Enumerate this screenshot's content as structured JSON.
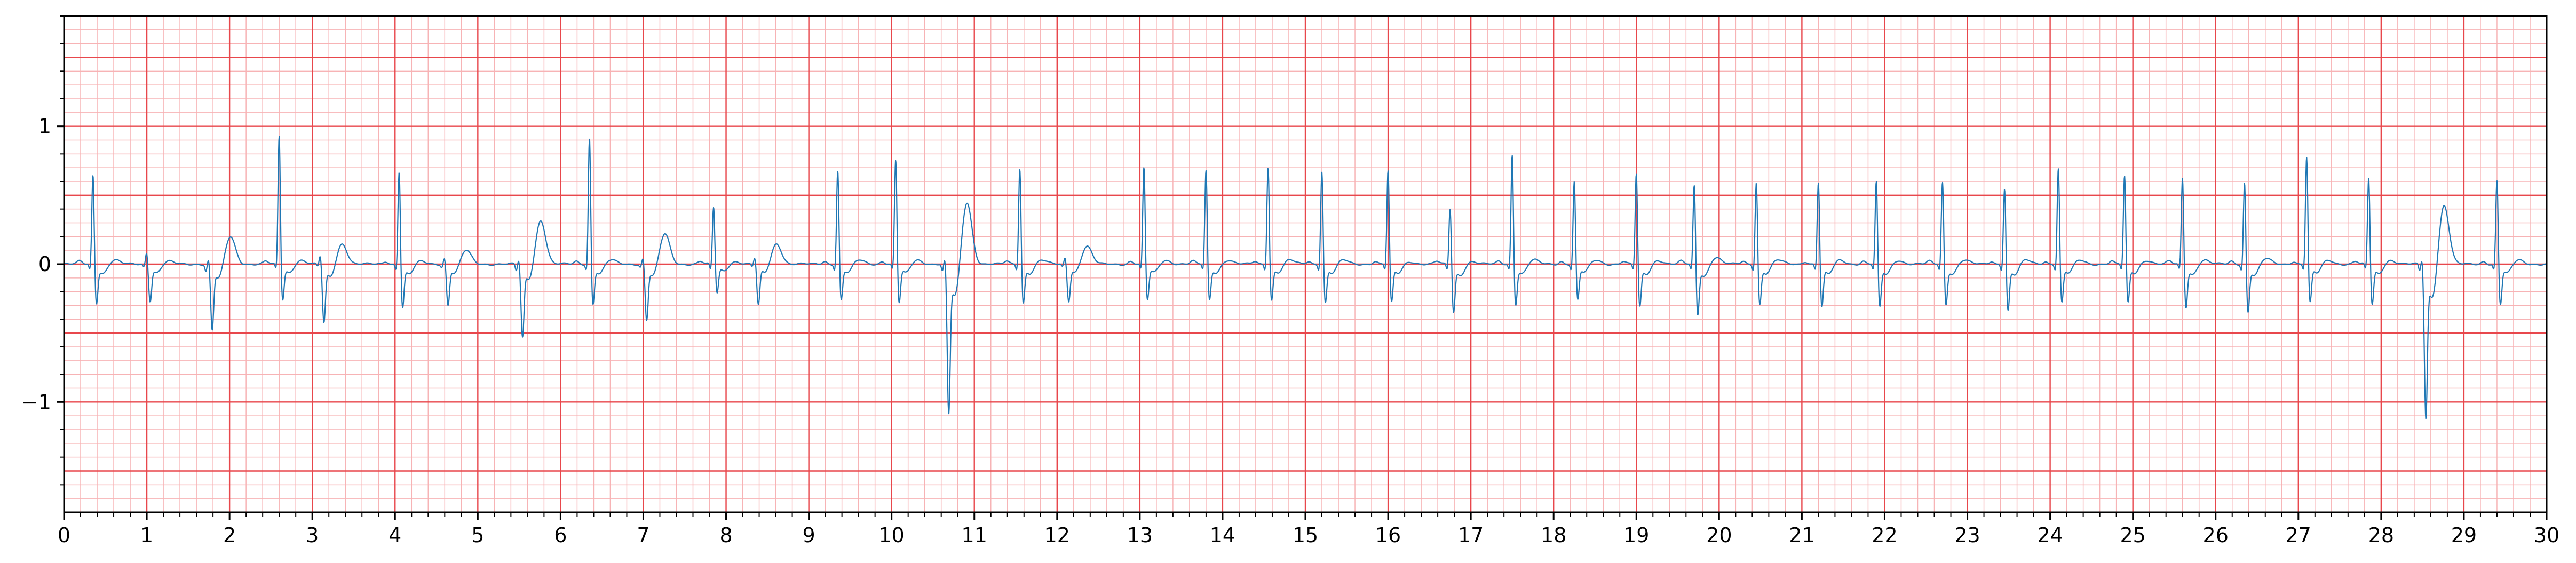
{
  "chart_data": {
    "type": "line",
    "title": "",
    "xlabel": "",
    "ylabel": "",
    "xlim": [
      0,
      30
    ],
    "ylim": [
      -1.8,
      1.8
    ],
    "x_ticks": [
      "0",
      "1",
      "2",
      "3",
      "4",
      "5",
      "6",
      "7",
      "8",
      "9",
      "10",
      "11",
      "12",
      "13",
      "14",
      "15",
      "16",
      "17",
      "18",
      "19",
      "20",
      "21",
      "22",
      "23",
      "24",
      "25",
      "26",
      "27",
      "28",
      "29",
      "30"
    ],
    "y_ticks": [
      {
        "value": 1,
        "label": "1"
      },
      {
        "value": 0,
        "label": "0"
      },
      {
        "value": -1,
        "label": "−1"
      }
    ],
    "grid": {
      "major_x": 1,
      "minor_x": 0.2,
      "major_y": 0.5,
      "minor_y": 0.1
    },
    "series": [
      {
        "beats": [
          {
            "t": 0.35,
            "r": 0.67,
            "q": -0.05,
            "s": -0.27,
            "p": 0.02,
            "tw": 0.03
          },
          {
            "t": 1.0,
            "r": 0.1,
            "q": -0.02,
            "s": -0.25,
            "p": 0.0,
            "tw": 0.02
          },
          {
            "t": 1.75,
            "r": 0.05,
            "q": -0.05,
            "s": -0.45,
            "p": 0.0,
            "tw": 0.2
          },
          {
            "t": 2.6,
            "r": 0.95,
            "q": -0.05,
            "s": -0.25,
            "p": 0.02,
            "tw": 0.03
          },
          {
            "t": 3.1,
            "r": 0.08,
            "q": -0.02,
            "s": -0.4,
            "p": 0.0,
            "tw": 0.15
          },
          {
            "t": 4.05,
            "r": 0.7,
            "q": -0.05,
            "s": -0.3,
            "p": 0.02,
            "tw": 0.02
          },
          {
            "t": 4.6,
            "r": 0.06,
            "q": -0.02,
            "s": -0.28,
            "p": 0.0,
            "tw": 0.1
          },
          {
            "t": 5.5,
            "r": 0.05,
            "q": -0.05,
            "s": -0.5,
            "p": 0.0,
            "tw": 0.32
          },
          {
            "t": 6.35,
            "r": 0.94,
            "q": -0.05,
            "s": -0.28,
            "p": 0.02,
            "tw": 0.03
          },
          {
            "t": 7.0,
            "r": 0.06,
            "q": -0.02,
            "s": -0.38,
            "p": 0.0,
            "tw": 0.22
          },
          {
            "t": 7.85,
            "r": 0.43,
            "q": -0.05,
            "s": -0.2,
            "p": 0.02,
            "tw": 0.02
          },
          {
            "t": 8.35,
            "r": 0.06,
            "q": -0.02,
            "s": -0.28,
            "p": 0.0,
            "tw": 0.15
          },
          {
            "t": 9.35,
            "r": 0.7,
            "q": -0.05,
            "s": -0.25,
            "p": 0.02,
            "tw": 0.03
          },
          {
            "t": 10.05,
            "r": 0.78,
            "q": -0.05,
            "s": -0.27,
            "p": 0.02,
            "tw": 0.03
          },
          {
            "t": 10.65,
            "r": 0.07,
            "q": -0.05,
            "s": -1.02,
            "p": 0.0,
            "tw": 0.45
          },
          {
            "t": 11.55,
            "r": 0.72,
            "q": -0.05,
            "s": -0.27,
            "p": 0.02,
            "tw": 0.03
          },
          {
            "t": 12.1,
            "r": 0.06,
            "q": -0.02,
            "s": -0.25,
            "p": 0.0,
            "tw": 0.13
          },
          {
            "t": 13.05,
            "r": 0.72,
            "q": -0.05,
            "s": -0.25,
            "p": 0.02,
            "tw": 0.03
          },
          {
            "t": 13.8,
            "r": 0.7,
            "q": -0.05,
            "s": -0.25,
            "p": 0.02,
            "tw": 0.03
          },
          {
            "t": 14.55,
            "r": 0.73,
            "q": -0.05,
            "s": -0.25,
            "p": 0.02,
            "tw": 0.03
          },
          {
            "t": 15.2,
            "r": 0.7,
            "q": -0.05,
            "s": -0.27,
            "p": 0.02,
            "tw": 0.03
          },
          {
            "t": 16.0,
            "r": 0.7,
            "q": -0.05,
            "s": -0.27,
            "p": 0.02,
            "tw": 0.02
          },
          {
            "t": 16.75,
            "r": 0.43,
            "q": -0.05,
            "s": -0.33,
            "p": 0.02,
            "tw": 0.02
          },
          {
            "t": 17.5,
            "r": 0.82,
            "q": -0.05,
            "s": -0.28,
            "p": 0.02,
            "tw": 0.03
          },
          {
            "t": 18.25,
            "r": 0.62,
            "q": -0.05,
            "s": -0.25,
            "p": 0.02,
            "tw": 0.03
          },
          {
            "t": 19.0,
            "r": 0.68,
            "q": -0.05,
            "s": -0.3,
            "p": 0.02,
            "tw": 0.03
          },
          {
            "t": 19.7,
            "r": 0.6,
            "q": -0.05,
            "s": -0.35,
            "p": 0.02,
            "tw": 0.05
          },
          {
            "t": 20.45,
            "r": 0.62,
            "q": -0.05,
            "s": -0.28,
            "p": 0.02,
            "tw": 0.03
          },
          {
            "t": 21.2,
            "r": 0.62,
            "q": -0.05,
            "s": -0.3,
            "p": 0.02,
            "tw": 0.03
          },
          {
            "t": 21.9,
            "r": 0.62,
            "q": -0.05,
            "s": -0.3,
            "p": 0.02,
            "tw": 0.03
          },
          {
            "t": 22.7,
            "r": 0.62,
            "q": -0.05,
            "s": -0.28,
            "p": 0.02,
            "tw": 0.03
          },
          {
            "t": 23.45,
            "r": 0.58,
            "q": -0.05,
            "s": -0.32,
            "p": 0.02,
            "tw": 0.03
          },
          {
            "t": 24.1,
            "r": 0.72,
            "q": -0.05,
            "s": -0.27,
            "p": 0.02,
            "tw": 0.03
          },
          {
            "t": 24.9,
            "r": 0.66,
            "q": -0.05,
            "s": -0.27,
            "p": 0.02,
            "tw": 0.03
          },
          {
            "t": 25.6,
            "r": 0.65,
            "q": -0.05,
            "s": -0.3,
            "p": 0.02,
            "tw": 0.03
          },
          {
            "t": 26.35,
            "r": 0.62,
            "q": -0.05,
            "s": -0.33,
            "p": 0.02,
            "tw": 0.04
          },
          {
            "t": 27.1,
            "r": 0.8,
            "q": -0.05,
            "s": -0.27,
            "p": 0.02,
            "tw": 0.03
          },
          {
            "t": 27.85,
            "r": 0.65,
            "q": -0.05,
            "s": -0.28,
            "p": 0.02,
            "tw": 0.03
          },
          {
            "t": 28.5,
            "r": 0.07,
            "q": -0.05,
            "s": -1.05,
            "p": 0.0,
            "tw": 0.43
          },
          {
            "t": 29.4,
            "r": 0.63,
            "q": -0.05,
            "s": -0.28,
            "p": 0.02,
            "tw": 0.03
          }
        ]
      }
    ]
  },
  "colors": {
    "trace": "#1f77b4",
    "grid_major": "#e8474c",
    "grid_minor": "#f7b3b5",
    "background": "#ffffff"
  }
}
